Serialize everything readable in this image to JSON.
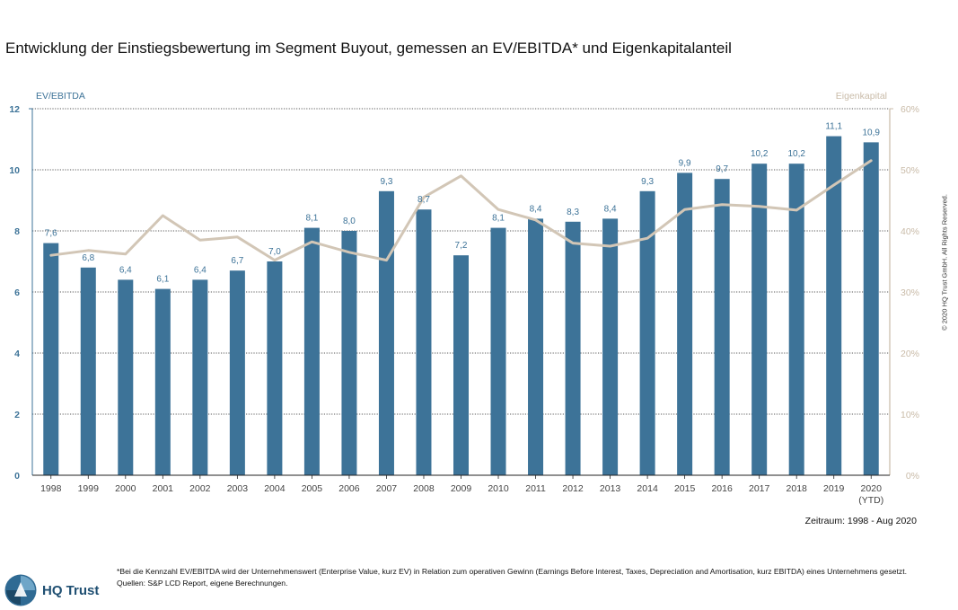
{
  "title": "Entwicklung der Einstiegsbewertung im Segment Buyout, gemessen an EV/EBITDA* und Eigenkapitalanteil",
  "copyright": "© 2020 HQ Trust GmbH. All Rights Reserved.",
  "period": "Zeitraum: 1998 - Aug 2020",
  "footnote": "*Bei die Kennzahl EV/EBITDA wird der Unternehmenswert (Enterprise Value, kurz EV) in Relation zum operativen Gewinn (Earnings Before Interest, Taxes, Depreciation and Amortisation, kurz EBITDA) eines Unternehmens gesetzt. Quellen: S&P LCD Report, eigene Berechnungen.",
  "logo": {
    "text": "HQ Trust",
    "icon": "hq-trust-logo-icon"
  },
  "colors": {
    "bar": "#3d7398",
    "line": "#d2c6b6",
    "right_axis": "#c9bba8",
    "left_axis": "#3d7398"
  },
  "chart_data": {
    "type": "bar",
    "categories": [
      "1998",
      "1999",
      "2000",
      "2001",
      "2002",
      "2003",
      "2004",
      "2005",
      "2006",
      "2007",
      "2008",
      "2009",
      "2010",
      "2011",
      "2012",
      "2013",
      "2014",
      "2015",
      "2016",
      "2017",
      "2018",
      "2019",
      "2020"
    ],
    "category_sublabels": {
      "2020": "(YTD)"
    },
    "ylabel": "EV/EBITDA",
    "ylabel_right": "Eigenkapital",
    "ylim": [
      0,
      12
    ],
    "yticks": [
      "0",
      "2",
      "4",
      "6",
      "8",
      "10",
      "12"
    ],
    "ylim_right": [
      0,
      60
    ],
    "yticks_right": [
      "0%",
      "10%",
      "20%",
      "30%",
      "40%",
      "50%",
      "60%"
    ],
    "grid": true,
    "series": [
      {
        "type": "bar",
        "axis": "left",
        "values": [
          7.6,
          6.8,
          6.4,
          6.1,
          6.4,
          6.7,
          7.0,
          8.1,
          8.0,
          9.3,
          8.7,
          7.2,
          8.1,
          8.4,
          8.3,
          8.4,
          9.3,
          9.9,
          9.7,
          10.2,
          10.2,
          11.1,
          10.9
        ],
        "labels": [
          "7,6",
          "6,8",
          "6,4",
          "6,1",
          "6,4",
          "6,7",
          "7,0",
          "8,1",
          "8,0",
          "9,3",
          "8,7",
          "7,2",
          "8,1",
          "8,4",
          "8,3",
          "8,4",
          "9,3",
          "9,9",
          "9,7",
          "10,2",
          "10,2",
          "11,1",
          "10,9"
        ]
      },
      {
        "type": "line",
        "axis": "right",
        "values": [
          36,
          36.8,
          36.2,
          42.5,
          38.5,
          39,
          35.2,
          38.2,
          36.5,
          35.2,
          45.5,
          49,
          43.5,
          41.8,
          38,
          37.5,
          38.8,
          43.5,
          44.3,
          44,
          43.4,
          47.5,
          51.5
        ]
      }
    ]
  }
}
